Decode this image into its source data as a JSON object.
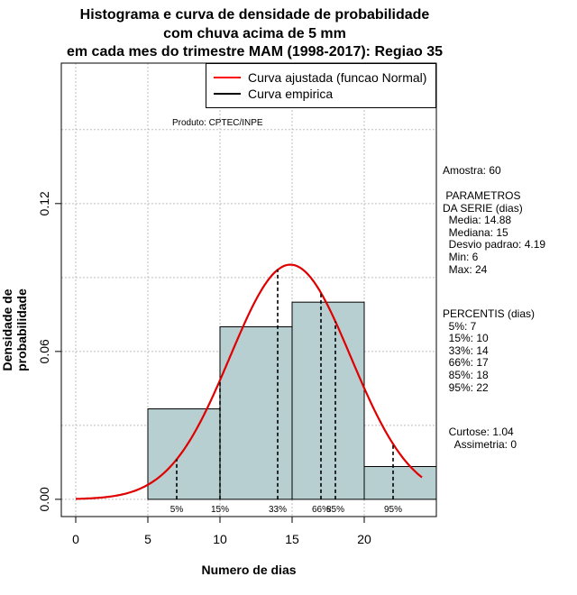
{
  "chart_data": {
    "type": "histogram",
    "title_lines": [
      "Histograma e curva de densidade de probabilidade",
      "com chuva acima de 5 mm",
      "em cada mes do trimestre MAM (1998-2017): Regiao 35"
    ],
    "xlabel": "Numero de dias",
    "ylabel": "Densidade de probabilidade",
    "xlim": [
      -1,
      25
    ],
    "ylim": [
      -0.007,
      0.177
    ],
    "x_ticks": [
      "0",
      "5",
      "10",
      "15",
      "20"
    ],
    "y_ticks": [
      "0.00",
      "0.06",
      "0.12"
    ],
    "bins": [
      {
        "from": 5,
        "to": 10,
        "density": 0.0367
      },
      {
        "from": 10,
        "to": 15,
        "density": 0.07
      },
      {
        "from": 15,
        "to": 20,
        "density": 0.08
      },
      {
        "from": 20,
        "to": 25,
        "density": 0.0133
      }
    ],
    "normal_fit": {
      "mean": 14.88,
      "sd": 4.19,
      "x_range": [
        0,
        24
      ]
    },
    "percentile_markers": [
      {
        "label": "5%",
        "x": 7
      },
      {
        "label": "15%",
        "x": 10
      },
      {
        "label": "33%",
        "x": 14
      },
      {
        "label": "66%",
        "x": 17
      },
      {
        "label": "85%",
        "x": 18
      },
      {
        "label": "95%",
        "x": 22
      }
    ],
    "grid": true,
    "legend_position": "top-right",
    "legend": [
      {
        "label": "Curva ajustada (funcao Normal)",
        "color": "#ff0000"
      },
      {
        "label": "Curva empirica",
        "color": "#000000"
      }
    ],
    "bar_color": "#b7cfd0",
    "curve_color": "#e00000"
  },
  "annotations": {
    "produto": "Produto: CPTEC/INPE",
    "amostra": "Amostra: 60",
    "parametros": " PARAMETROS\nDA SERIE (dias)\n  Media: 14.88\n  Mediana: 15\n  Desvio padrao: 4.19\n  Min: 6\n  Max: 24",
    "percentis": "PERCENTIS (dias)\n  5%: 7\n  15%: 10\n  33%: 14\n  66%: 17\n  85%: 18\n  95%: 22",
    "stats": "  Curtose: 1.04\n    Assimetria: 0"
  }
}
